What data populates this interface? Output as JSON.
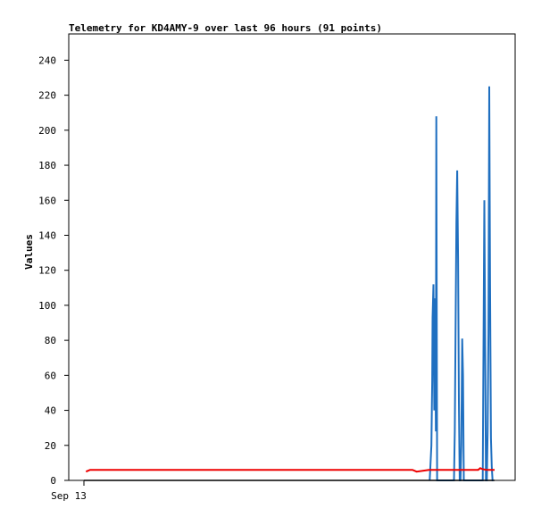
{
  "chart_data": {
    "type": "line",
    "title": "Telemetry for KD4AMY-9 over last 96 hours (91 points)",
    "xlabel": "",
    "ylabel": "Values",
    "ylim": [
      0,
      255
    ],
    "yticks": [
      0,
      20,
      40,
      60,
      80,
      100,
      120,
      140,
      160,
      180,
      200,
      220,
      240
    ],
    "xlim": [
      0,
      1
    ],
    "xticks": [
      {
        "x": 0,
        "label": "Sep 13"
      }
    ],
    "grid": false,
    "legend": "none",
    "colors": {
      "blue": "#1f6fc0",
      "red": "#ee0000",
      "black": "#000000"
    },
    "series": [
      {
        "color": "#1f6fc0",
        "x": [
          0.842,
          0.846,
          0.848,
          0.849,
          0.851,
          0.853,
          0.855,
          0.857,
          0.858,
          0.86,
          0.862,
          0.864,
          0.866,
          0.869,
          0.871,
          0.901,
          0.903,
          0.905,
          0.907,
          0.909,
          0.911,
          0.913,
          0.915,
          0.917,
          0.919,
          0.921,
          0.923,
          0.925,
          0.927,
          0.929,
          0.931,
          0.971,
          0.973,
          0.975,
          0.977,
          0.979,
          0.981,
          0.983,
          0.985,
          0.987,
          0.989,
          0.991,
          0.993,
          0.995,
          0.997
        ],
        "y": [
          0,
          20,
          57,
          93,
          112,
          40,
          104,
          28,
          208,
          0,
          0,
          0,
          0,
          0,
          0,
          0,
          28,
          88,
          147,
          177,
          126,
          45,
          0,
          0,
          20,
          81,
          60,
          0,
          0,
          0,
          0,
          0,
          81,
          160,
          80,
          0,
          0,
          28,
          84,
          225,
          112,
          24,
          8,
          0,
          0
        ]
      },
      {
        "color": "#ee0000",
        "x": [
          0.005,
          0.01,
          0.015,
          0.03,
          0.1,
          0.2,
          0.3,
          0.4,
          0.5,
          0.6,
          0.7,
          0.8,
          0.81,
          0.84,
          0.88,
          0.93,
          0.96,
          0.965,
          0.97,
          0.98,
          0.99,
          1.0
        ],
        "y": [
          5,
          5.5,
          6,
          6,
          6,
          6,
          6,
          6,
          6,
          6,
          6,
          6,
          5,
          6,
          6,
          6,
          6,
          7,
          6.5,
          6,
          6,
          6
        ]
      },
      {
        "color": "#000000",
        "x": [
          0.0,
          0.25,
          0.5,
          0.75,
          1.0
        ],
        "y": [
          0,
          0,
          0,
          0,
          0
        ]
      }
    ]
  }
}
